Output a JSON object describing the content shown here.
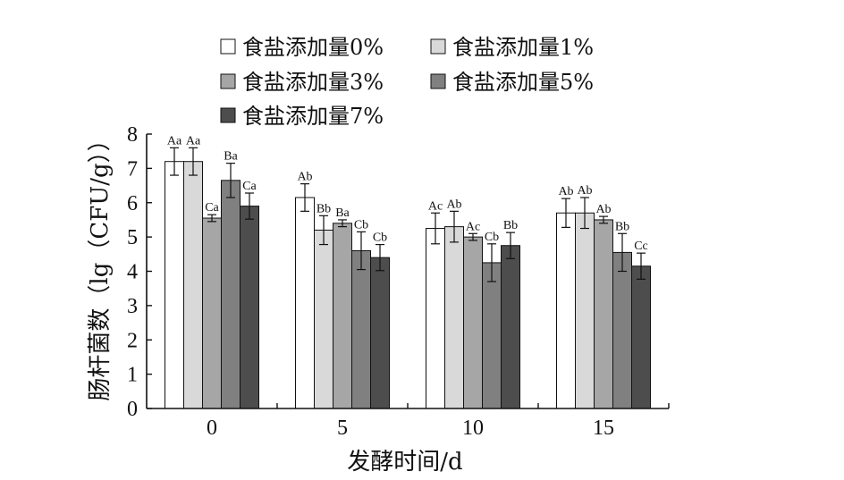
{
  "chart_data": {
    "type": "bar",
    "xlabel": "发酵时间/d",
    "ylabel": "肠杆菌数（lg（CFU/g））",
    "categories": [
      "0",
      "5",
      "10",
      "15"
    ],
    "ylim": [
      0,
      8
    ],
    "yticks": [
      "0",
      "1",
      "2",
      "3",
      "4",
      "5",
      "6",
      "7",
      "8"
    ],
    "grid": false,
    "legend_position": "top",
    "series": [
      {
        "name": "食盐添加量0%",
        "color": "#ffffff",
        "values": [
          7.2,
          6.15,
          5.25,
          5.7
        ],
        "errors": [
          0.4,
          0.4,
          0.45,
          0.42
        ],
        "labels": [
          "Aa",
          "Ab",
          "Ac",
          "Ab"
        ]
      },
      {
        "name": "食盐添加量1%",
        "color": "#d9d9d9",
        "values": [
          7.2,
          5.2,
          5.3,
          5.7
        ],
        "errors": [
          0.4,
          0.42,
          0.45,
          0.45
        ],
        "labels": [
          "Aa",
          "Bb",
          "Ab",
          "Ab"
        ]
      },
      {
        "name": "食盐添加量3%",
        "color": "#a6a6a6",
        "values": [
          5.55,
          5.4,
          5.0,
          5.5
        ],
        "errors": [
          0.1,
          0.1,
          0.1,
          0.1
        ],
        "labels": [
          "Ca",
          "Ba",
          "Ac",
          "Ab"
        ]
      },
      {
        "name": "食盐添加量5%",
        "color": "#808080",
        "values": [
          6.65,
          4.6,
          4.25,
          4.55
        ],
        "errors": [
          0.5,
          0.55,
          0.55,
          0.55
        ],
        "labels": [
          "Ba",
          "Cb",
          "Cb",
          "Bb"
        ]
      },
      {
        "name": "食盐添加量7%",
        "color": "#4d4d4d",
        "values": [
          5.9,
          4.4,
          4.75,
          4.15
        ],
        "errors": [
          0.38,
          0.38,
          0.38,
          0.38
        ],
        "labels": [
          "Ca",
          "Cb",
          "Bb",
          "Cc"
        ]
      }
    ]
  }
}
